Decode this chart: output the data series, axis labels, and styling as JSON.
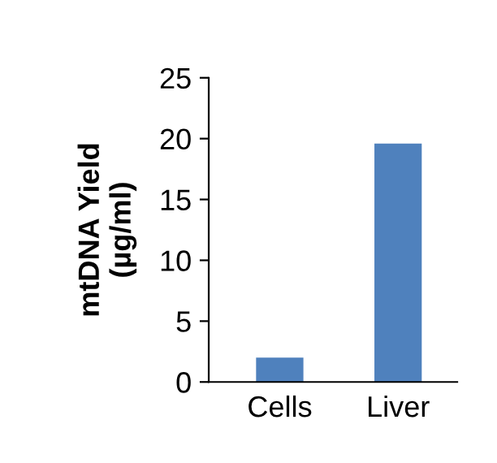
{
  "chart_data": {
    "type": "bar",
    "ylabel": "mtDNA Yield\n(µg/ml)",
    "categories": [
      "Cells",
      "Liver"
    ],
    "values": [
      2.0,
      19.6
    ],
    "color": "#4f81bd",
    "ylim": [
      0,
      25
    ],
    "yticks": [
      0,
      5,
      10,
      15,
      20,
      25
    ],
    "grid": false,
    "legend": false
  }
}
